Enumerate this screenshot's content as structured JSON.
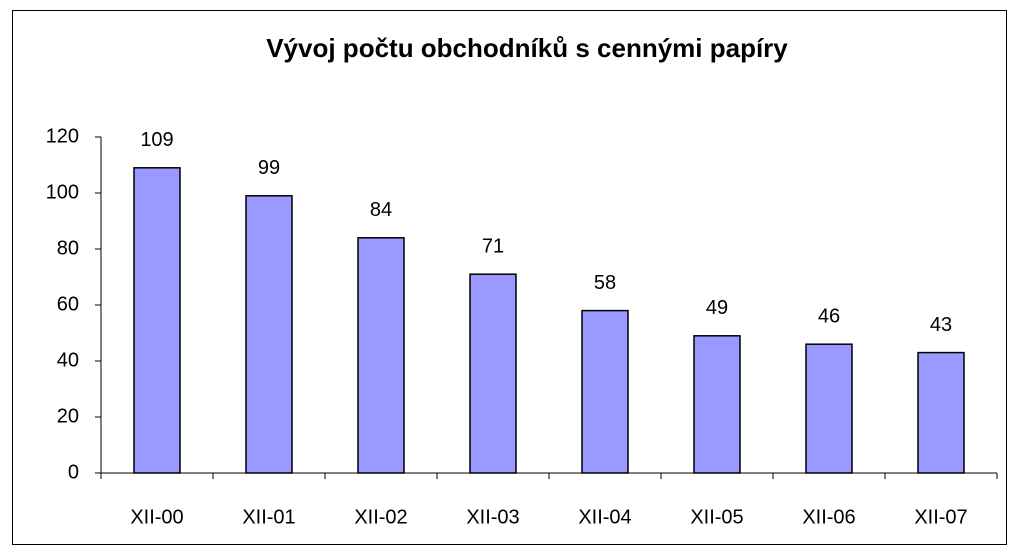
{
  "chart_data": {
    "type": "bar",
    "title": "Vývoj počtu obchodníků s cennými papíry",
    "categories": [
      "XII-00",
      "XII-01",
      "XII-02",
      "XII-03",
      "XII-04",
      "XII-05",
      "XII-06",
      "XII-07"
    ],
    "values": [
      109,
      99,
      84,
      71,
      58,
      49,
      46,
      43
    ],
    "color": "#9999ff",
    "ylim": [
      0,
      120
    ],
    "yticks": [
      0,
      20,
      40,
      60,
      80,
      100,
      120
    ],
    "grid": false
  }
}
